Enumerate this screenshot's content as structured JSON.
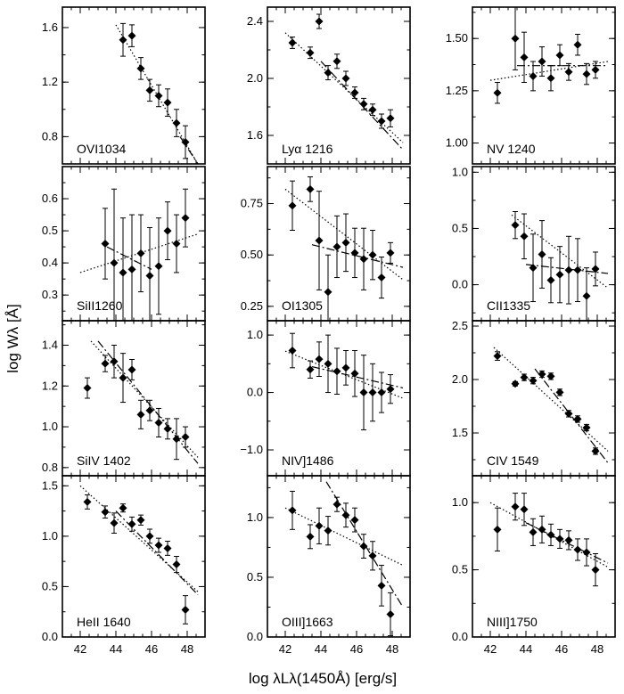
{
  "figure": {
    "ylabel": "log Wλ  [Å]",
    "xlabel": "log λLλ(1450Å)     [erg/s]"
  },
  "chart_data": [
    {
      "type": "scatter",
      "title": "OVI1034",
      "xlim": [
        41,
        49
      ],
      "ylim": [
        0.6,
        1.75
      ],
      "yticks": [
        0.8,
        1.2,
        1.6
      ],
      "yticklabels": [
        "0.8",
        "1.2",
        "1.6"
      ],
      "series": [
        {
          "x": [
            44.4,
            44.9,
            45.4,
            45.9,
            46.4,
            46.9,
            47.4,
            47.9
          ],
          "y": [
            1.51,
            1.54,
            1.3,
            1.14,
            1.1,
            1.05,
            0.9,
            0.76
          ],
          "err": [
            0.12,
            0.08,
            0.08,
            0.08,
            0.08,
            0.1,
            0.1,
            0.12
          ]
        }
      ],
      "fits": {
        "dotted": [
          [
            44,
            1.62
          ],
          [
            48.6,
            0.6
          ]
        ],
        "dashed": [
          [
            47.6,
            0.8
          ],
          [
            48.6,
            0.6
          ]
        ]
      }
    },
    {
      "type": "scatter",
      "title": "Lyα 1216",
      "xlim": [
        41,
        49
      ],
      "ylim": [
        1.4,
        2.5
      ],
      "yticks": [
        1.6,
        2.0,
        2.4
      ],
      "yticklabels": [
        "1.6",
        "2.0",
        "2.4"
      ],
      "series": [
        {
          "x": [
            42.4,
            43.4,
            43.9,
            44.4,
            44.9,
            45.4,
            45.9,
            46.4,
            46.9,
            47.4,
            47.9
          ],
          "y": [
            2.25,
            2.18,
            2.4,
            2.04,
            2.12,
            2.0,
            1.9,
            1.82,
            1.78,
            1.7,
            1.72
          ],
          "err": [
            0.04,
            0.04,
            0.05,
            0.05,
            0.05,
            0.05,
            0.04,
            0.04,
            0.04,
            0.05,
            0.06
          ]
        }
      ],
      "fits": {
        "dotted": [
          [
            42,
            2.32
          ],
          [
            48.6,
            1.55
          ]
        ],
        "dashed": [
          [
            44,
            2.12
          ],
          [
            48.6,
            1.5
          ]
        ]
      }
    },
    {
      "type": "scatter",
      "title": "NV 1240",
      "xlim": [
        41,
        49
      ],
      "ylim": [
        0.9,
        1.65
      ],
      "yticks": [
        1.0,
        1.25,
        1.5
      ],
      "yticklabels": [
        "1.00",
        "1.25",
        "1.50"
      ],
      "series": [
        {
          "x": [
            42.4,
            43.4,
            43.9,
            44.4,
            44.9,
            45.4,
            45.9,
            46.4,
            46.9,
            47.4,
            47.9
          ],
          "y": [
            1.24,
            1.5,
            1.41,
            1.32,
            1.39,
            1.31,
            1.42,
            1.34,
            1.47,
            1.33,
            1.35
          ],
          "err": [
            0.05,
            0.15,
            0.12,
            0.07,
            0.07,
            0.06,
            0.05,
            0.04,
            0.05,
            0.05,
            0.04
          ]
        }
      ],
      "fits": {
        "dotted": [
          [
            42,
            1.3
          ],
          [
            48.6,
            1.39
          ]
        ],
        "dashed": [
          [
            43.5,
            1.37
          ],
          [
            48.6,
            1.37
          ]
        ]
      }
    },
    {
      "type": "scatter",
      "title": "SiII1260",
      "xlim": [
        41,
        49
      ],
      "ylim": [
        0.22,
        0.7
      ],
      "yticks": [
        0.3,
        0.4,
        0.5,
        0.6
      ],
      "yticklabels": [
        "0.3",
        "0.4",
        "0.5",
        "0.6"
      ],
      "series": [
        {
          "x": [
            43.4,
            43.9,
            44.4,
            44.9,
            45.4,
            45.9,
            46.4,
            46.9,
            47.4,
            47.9
          ],
          "y": [
            0.46,
            0.4,
            0.37,
            0.38,
            0.43,
            0.36,
            0.39,
            0.5,
            0.46,
            0.54
          ],
          "err": [
            0.11,
            0.23,
            0.17,
            0.17,
            0.12,
            0.15,
            0.15,
            0.09,
            0.09,
            0.09
          ]
        }
      ],
      "fits": {
        "dotted": [
          [
            42,
            0.37
          ],
          [
            48.6,
            0.49
          ]
        ],
        "dashed": [
          [
            43.5,
            0.45
          ],
          [
            46,
            0.38
          ]
        ]
      }
    },
    {
      "type": "scatter",
      "title": "OI1305",
      "xlim": [
        41,
        49
      ],
      "ylim": [
        0.18,
        0.93
      ],
      "yticks": [
        0.25,
        0.5,
        0.75
      ],
      "yticklabels": [
        "0.25",
        "0.50",
        "0.75"
      ],
      "series": [
        {
          "x": [
            42.4,
            43.4,
            43.9,
            44.4,
            44.9,
            45.4,
            45.9,
            46.4,
            46.9,
            47.4,
            47.9
          ],
          "y": [
            0.74,
            0.82,
            0.57,
            0.32,
            0.54,
            0.56,
            0.51,
            0.48,
            0.5,
            0.39,
            0.51
          ],
          "err": [
            0.12,
            0.06,
            0.24,
            0.18,
            0.15,
            0.14,
            0.12,
            0.15,
            0.12,
            0.1,
            0.05
          ]
        }
      ],
      "fits": {
        "dotted": [
          [
            42,
            0.82
          ],
          [
            48.6,
            0.38
          ]
        ],
        "dashed": [
          [
            43.5,
            0.55
          ],
          [
            48.6,
            0.44
          ]
        ]
      }
    },
    {
      "type": "scatter",
      "title": "CII1335",
      "xlim": [
        41,
        49
      ],
      "ylim": [
        -0.32,
        1.05
      ],
      "yticks": [
        0.0,
        0.5,
        1.0
      ],
      "yticklabels": [
        "0.0",
        "0.5",
        "1.0"
      ],
      "series": [
        {
          "x": [
            43.4,
            43.9,
            44.4,
            44.9,
            45.4,
            45.9,
            46.4,
            46.9,
            47.4,
            47.9
          ],
          "y": [
            0.53,
            0.43,
            0.15,
            0.27,
            0.04,
            0.09,
            0.13,
            0.13,
            -0.1,
            0.14
          ],
          "err": [
            0.12,
            0.2,
            0.3,
            0.3,
            0.2,
            0.25,
            0.3,
            0.28,
            0.25,
            0.15
          ]
        }
      ],
      "fits": {
        "dotted": [
          [
            43.2,
            0.62
          ],
          [
            48.6,
            -0.03
          ]
        ],
        "dashed": [
          [
            44,
            0.18
          ],
          [
            48.6,
            0.1
          ]
        ]
      }
    },
    {
      "type": "scatter",
      "title": "SiIV 1402",
      "xlim": [
        41,
        49
      ],
      "ylim": [
        0.76,
        1.52
      ],
      "yticks": [
        0.8,
        1.0,
        1.2,
        1.4
      ],
      "yticklabels": [
        "0.8",
        "1.0",
        "1.2",
        "1.4"
      ],
      "series": [
        {
          "x": [
            42.4,
            43.4,
            43.9,
            44.4,
            44.9,
            45.4,
            45.9,
            46.4,
            46.9,
            47.4,
            47.9
          ],
          "y": [
            1.19,
            1.31,
            1.32,
            1.24,
            1.28,
            1.06,
            1.08,
            1.02,
            0.99,
            0.94,
            0.95
          ],
          "err": [
            0.05,
            0.04,
            0.08,
            0.12,
            0.05,
            0.07,
            0.05,
            0.07,
            0.05,
            0.1,
            0.05
          ]
        }
      ],
      "fits": {
        "dotted": [
          [
            42.6,
            1.42
          ],
          [
            48.6,
            0.85
          ]
        ],
        "dashed": [
          [
            43,
            1.42
          ],
          [
            48.6,
            0.82
          ]
        ]
      }
    },
    {
      "type": "scatter",
      "title": "NIV]1486",
      "xlim": [
        41,
        49
      ],
      "ylim": [
        -1.45,
        1.25
      ],
      "yticks": [
        -1.0,
        0.0,
        1.0
      ],
      "yticklabels": [
        "−1.0",
        "0.0",
        "1.0"
      ],
      "series": [
        {
          "x": [
            42.4,
            43.4,
            43.9,
            44.4,
            44.9,
            45.4,
            45.9,
            46.4,
            46.9,
            47.4,
            47.9
          ],
          "y": [
            0.73,
            0.4,
            0.58,
            0.5,
            0.37,
            0.43,
            0.33,
            0.0,
            0.0,
            0.0,
            0.06
          ],
          "err": [
            0.3,
            0.15,
            0.3,
            0.5,
            0.4,
            0.3,
            0.4,
            0.65,
            0.5,
            0.35,
            0.25
          ]
        }
      ],
      "fits": {
        "dotted": [
          [
            42,
            0.72
          ],
          [
            48.6,
            -0.1
          ]
        ],
        "dashed": [
          [
            43.5,
            0.45
          ],
          [
            48.6,
            0.08
          ]
        ]
      }
    },
    {
      "type": "scatter",
      "title": "CIV 1549",
      "xlim": [
        41,
        49
      ],
      "ylim": [
        1.1,
        2.55
      ],
      "yticks": [
        1.5,
        2.0,
        2.5
      ],
      "yticklabels": [
        "1.5",
        "2.0",
        "2.5"
      ],
      "series": [
        {
          "x": [
            42.4,
            43.4,
            43.9,
            44.4,
            44.9,
            45.4,
            45.9,
            46.4,
            46.9,
            47.4,
            47.9
          ],
          "y": [
            2.22,
            1.96,
            2.02,
            1.99,
            2.05,
            2.03,
            1.88,
            1.68,
            1.63,
            1.55,
            1.33
          ],
          "err": [
            0.04,
            0.02,
            0.03,
            0.03,
            0.03,
            0.03,
            0.03,
            0.03,
            0.03,
            0.03,
            0.03
          ]
        }
      ],
      "fits": {
        "dotted": [
          [
            42.2,
            2.3
          ],
          [
            48.6,
            1.33
          ]
        ],
        "dashed": [
          [
            44.5,
            2.1
          ],
          [
            48.6,
            1.22
          ]
        ]
      }
    },
    {
      "type": "scatter",
      "title": "HeII 1640",
      "xlim": [
        41,
        49
      ],
      "ylim": [
        0.0,
        1.6
      ],
      "yticks": [
        0.0,
        0.5,
        1.0,
        1.5
      ],
      "yticklabels": [
        "0.0",
        "0.5",
        "1.0",
        "1.5"
      ],
      "series": [
        {
          "x": [
            42.4,
            43.4,
            43.9,
            44.4,
            44.9,
            45.4,
            45.9,
            46.4,
            46.9,
            47.4,
            47.9
          ],
          "y": [
            1.34,
            1.24,
            1.13,
            1.28,
            1.12,
            1.16,
            1.0,
            0.91,
            0.88,
            0.72,
            0.27
          ],
          "err": [
            0.07,
            0.06,
            0.1,
            0.04,
            0.07,
            0.05,
            0.07,
            0.07,
            0.07,
            0.08,
            0.14
          ]
        }
      ],
      "fits": {
        "dotted": [
          [
            42,
            1.5
          ],
          [
            48.6,
            0.45
          ]
        ],
        "dashed": [
          [
            44,
            1.25
          ],
          [
            48.6,
            0.42
          ]
        ]
      }
    },
    {
      "type": "scatter",
      "title": "OIII]1663",
      "xlim": [
        41,
        49
      ],
      "ylim": [
        0.0,
        1.35
      ],
      "yticks": [
        0.0,
        0.5,
        1.0
      ],
      "yticklabels": [
        "0.0",
        "0.5",
        "1.0"
      ],
      "series": [
        {
          "x": [
            42.4,
            43.4,
            43.9,
            44.4,
            44.9,
            45.4,
            45.9,
            46.4,
            46.9,
            47.4,
            47.9
          ],
          "y": [
            1.06,
            0.84,
            0.93,
            0.89,
            1.11,
            1.02,
            0.98,
            0.76,
            0.68,
            0.43,
            0.19
          ],
          "err": [
            0.16,
            0.1,
            0.15,
            0.12,
            0.06,
            0.1,
            0.1,
            0.1,
            0.12,
            0.17,
            0.18
          ]
        }
      ],
      "fits": {
        "dotted": [
          [
            42,
            1.08
          ],
          [
            48.6,
            0.6
          ]
        ],
        "dashed": [
          [
            44.3,
            1.3
          ],
          [
            48.6,
            0.25
          ]
        ]
      }
    },
    {
      "type": "scatter",
      "title": "NIII]1750",
      "xlim": [
        41,
        49
      ],
      "ylim": [
        0.0,
        1.2
      ],
      "yticks": [
        0.0,
        0.5,
        1.0
      ],
      "yticklabels": [
        "0.0",
        "0.5",
        "1.0"
      ],
      "series": [
        {
          "x": [
            42.4,
            43.4,
            43.9,
            44.4,
            44.9,
            45.4,
            45.9,
            46.4,
            46.9,
            47.4,
            47.9
          ],
          "y": [
            0.8,
            0.97,
            0.95,
            0.78,
            0.8,
            0.76,
            0.73,
            0.72,
            0.65,
            0.63,
            0.5
          ],
          "err": [
            0.16,
            0.1,
            0.12,
            0.1,
            0.1,
            0.08,
            0.07,
            0.07,
            0.08,
            0.1,
            0.12
          ]
        }
      ],
      "fits": {
        "dotted": [
          [
            42,
            1.0
          ],
          [
            48.6,
            0.52
          ]
        ],
        "dashed": [
          [
            44,
            0.85
          ],
          [
            48.6,
            0.55
          ]
        ]
      }
    }
  ],
  "xaxis": {
    "ticks": [
      42,
      44,
      46,
      48
    ],
    "ticklabels": [
      "42",
      "44",
      "46",
      "48"
    ]
  }
}
